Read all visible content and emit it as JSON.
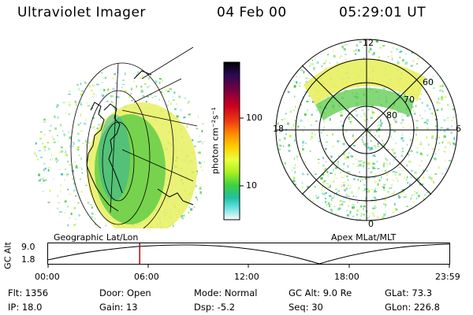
{
  "header": {
    "instrument": "Ultraviolet Imager",
    "date": "04 Feb 00",
    "time": "05:29:01 UT"
  },
  "colors": {
    "colorbar_stops": [
      "#000000",
      "#2a0a55",
      "#7a0040",
      "#cc0020",
      "#ee4010",
      "#ff9000",
      "#ffd000",
      "#e8ff40",
      "#a8f020",
      "#40d040",
      "#20c0a0",
      "#60e0e0",
      "#c0f0f0",
      "#ffffff"
    ],
    "timeline_marker": "#cc0000",
    "aurora_yellow": "#e8f060",
    "aurora_green": "#40c040"
  },
  "colorbar": {
    "unit_label": "photon cm⁻²s⁻¹",
    "tick_100": "100",
    "tick_10": "10"
  },
  "panels": {
    "left_caption": "Geographic Lat/Lon",
    "right_caption": "Apex  MLat/MLT",
    "polar_labels": {
      "mlt_12": "12",
      "mlt_18": "18",
      "mlt_6": "6",
      "mlt_0": "0",
      "lat_60": "60",
      "lat_70": "70",
      "lat_80": "80"
    }
  },
  "timeline": {
    "ylabel": "GC Alt",
    "ytick_top": "9.0",
    "ytick_bottom": "1.8",
    "xticks": [
      "00:00",
      "06:00",
      "12:00",
      "18:00",
      "23:59"
    ],
    "marker_hours": 5.48
  },
  "footer": {
    "flt": "Flt:  1356",
    "ip": "IP:  18.0",
    "door": "Door:  Open",
    "gain": "Gain:  13",
    "mode": "Mode:  Normal",
    "dsp": "Dsp:     -5.2",
    "gcalt": "GC Alt:  9.0 Re",
    "seq": "Seq:  30",
    "glat": "GLat:   73.3",
    "glon": "GLon:  226.8"
  }
}
